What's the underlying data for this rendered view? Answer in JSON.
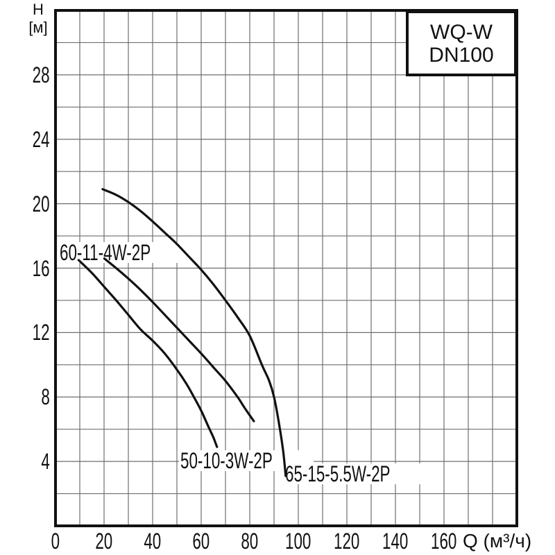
{
  "title_box": {
    "line1": "WQ-W",
    "line2": "DN100"
  },
  "y_axis": {
    "title_line1": "H",
    "title_line2": "[м]"
  },
  "x_axis": {
    "title": "Q (м³/ч)"
  },
  "curve_labels": {
    "c60": "60-11-4W-2P",
    "c50": "50-10-3W-2P",
    "c65": "65-15-5.5W-2P"
  },
  "chart_data": {
    "type": "line",
    "title": "WQ-W DN100 pump performance curves",
    "xlabel": "Q (м³/ч)",
    "ylabel": "H [м]",
    "xlim": [
      0,
      190
    ],
    "ylim": [
      0,
      32
    ],
    "x_grid_step": 10,
    "y_grid_step": 2,
    "x_tick_labels": [
      "0",
      "20",
      "40",
      "60",
      "80",
      "100",
      "120",
      "140",
      "160"
    ],
    "x_tick_values": [
      0,
      20,
      40,
      60,
      80,
      100,
      120,
      140,
      160
    ],
    "y_tick_labels": [
      "4",
      "8",
      "12",
      "16",
      "20",
      "24",
      "28"
    ],
    "y_tick_values": [
      4,
      8,
      12,
      16,
      20,
      24,
      28
    ],
    "grid": true,
    "legend_position": "none",
    "series": [
      {
        "name": "65-15-5.5W-2P",
        "points": [
          [
            19.4,
            20.9
          ],
          [
            25,
            20.55
          ],
          [
            30,
            20.1
          ],
          [
            35,
            19.55
          ],
          [
            40,
            18.9
          ],
          [
            45,
            18.2
          ],
          [
            50,
            17.5
          ],
          [
            55,
            16.7
          ],
          [
            60,
            15.9
          ],
          [
            65,
            15.0
          ],
          [
            70,
            14.0
          ],
          [
            75,
            12.95
          ],
          [
            80,
            11.8
          ],
          [
            85,
            10.0
          ],
          [
            88,
            9.0
          ],
          [
            90,
            8.0
          ],
          [
            92,
            6.4
          ],
          [
            93.8,
            4.6
          ],
          [
            94.8,
            3.1
          ]
        ]
      },
      {
        "name": "60-11-4W-2P",
        "points": [
          [
            20.1,
            16.6
          ],
          [
            25,
            16.0
          ],
          [
            30,
            15.35
          ],
          [
            35,
            14.65
          ],
          [
            40,
            13.9
          ],
          [
            45,
            13.1
          ],
          [
            50,
            12.3
          ],
          [
            55,
            11.5
          ],
          [
            60,
            10.7
          ],
          [
            65,
            9.85
          ],
          [
            70,
            9.0
          ],
          [
            75,
            8.0
          ],
          [
            78,
            7.3
          ],
          [
            81.7,
            6.5
          ]
        ]
      },
      {
        "name": "50-10-3W-2P",
        "points": [
          [
            9.5,
            16.5
          ],
          [
            15,
            15.7
          ],
          [
            20,
            14.85
          ],
          [
            25,
            14.0
          ],
          [
            30,
            13.1
          ],
          [
            35,
            12.2
          ],
          [
            40,
            11.5
          ],
          [
            45,
            10.7
          ],
          [
            50,
            9.7
          ],
          [
            54,
            8.8
          ],
          [
            57,
            8.0
          ],
          [
            60,
            7.15
          ],
          [
            63,
            6.15
          ],
          [
            65,
            5.5
          ],
          [
            66.5,
            4.9
          ]
        ]
      }
    ],
    "styles": {
      "grid_color": "#6e6e6e",
      "frame_color": "#111111",
      "curve_color": "#111111",
      "text_color": "#111111",
      "background": "#ffffff"
    }
  }
}
